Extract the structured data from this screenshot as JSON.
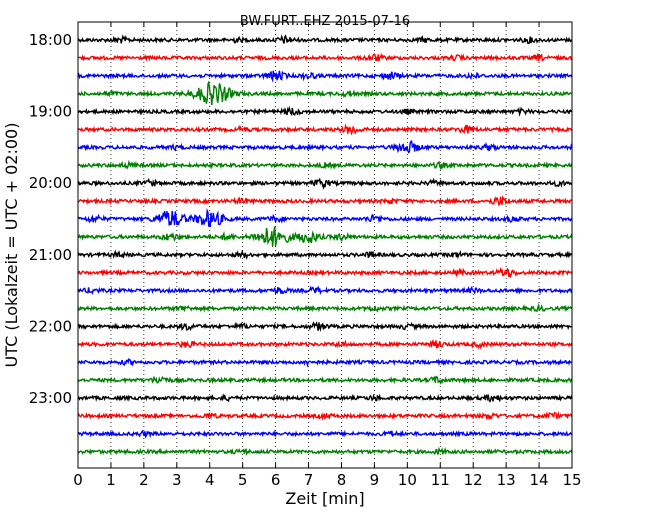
{
  "chart_data": {
    "type": "line",
    "title": "BW.FURT..EHZ 2015-07-16",
    "xlabel": "Zeit  [min]",
    "ylabel": "UTC (Lokalzeit = UTC + 02:00)",
    "xlim": [
      0,
      15
    ],
    "x_ticks": [
      "0",
      "1",
      "2",
      "3",
      "4",
      "5",
      "6",
      "7",
      "8",
      "9",
      "10",
      "11",
      "12",
      "13",
      "14",
      "15"
    ],
    "y_tick_labels": [
      "18:00",
      "19:00",
      "20:00",
      "21:00",
      "22:00",
      "23:00"
    ],
    "grid": "vertical dotted at each minute",
    "trace_colors": [
      "#000000",
      "#ff0000",
      "#0000ff",
      "#008000"
    ],
    "series": [
      {
        "start": "18:00",
        "bursts": [
          [
            1.3,
            0.7
          ],
          [
            4.8,
            0.5
          ],
          [
            6.3,
            0.9
          ],
          [
            10.5,
            0.5
          ],
          [
            13.7,
            0.6
          ]
        ]
      },
      {
        "start": "18:15",
        "bursts": [
          [
            9.0,
            0.9
          ],
          [
            11.5,
            0.5
          ],
          [
            14.0,
            0.6
          ]
        ]
      },
      {
        "start": "18:30",
        "bursts": [
          [
            6.0,
            1.3
          ],
          [
            7.0,
            0.7
          ],
          [
            9.5,
            0.9
          ],
          [
            12.0,
            0.6
          ]
        ]
      },
      {
        "start": "18:45",
        "bursts": [
          [
            4.1,
            3.2
          ],
          [
            1.0,
            0.5
          ],
          [
            8.2,
            0.6
          ]
        ]
      },
      {
        "start": "19:00",
        "bursts": [
          [
            6.5,
            0.9
          ],
          [
            10.0,
            0.5
          ],
          [
            13.5,
            0.5
          ]
        ]
      },
      {
        "start": "19:15",
        "bursts": [
          [
            8.3,
            1.1
          ],
          [
            11.8,
            0.9
          ],
          [
            5.0,
            0.5
          ]
        ]
      },
      {
        "start": "19:30",
        "bursts": [
          [
            10.0,
            1.7
          ],
          [
            12.5,
            0.7
          ],
          [
            3.0,
            0.5
          ]
        ]
      },
      {
        "start": "19:45",
        "bursts": [
          [
            1.5,
            0.6
          ],
          [
            7.5,
            0.5
          ],
          [
            11.0,
            0.6
          ]
        ]
      },
      {
        "start": "20:00",
        "bursts": [
          [
            2.2,
            0.7
          ],
          [
            7.4,
            1.0
          ],
          [
            10.8,
            0.5
          ],
          [
            14.6,
            0.5
          ]
        ]
      },
      {
        "start": "20:15",
        "bursts": [
          [
            5.0,
            0.6
          ],
          [
            12.8,
            1.1
          ],
          [
            9.5,
            0.5
          ]
        ]
      },
      {
        "start": "20:30",
        "bursts": [
          [
            0.5,
            0.8
          ],
          [
            2.8,
            2.4
          ],
          [
            4.0,
            2.3
          ],
          [
            6.0,
            0.7
          ],
          [
            9.0,
            0.9
          ],
          [
            13.2,
            0.6
          ]
        ]
      },
      {
        "start": "20:45",
        "bursts": [
          [
            2.8,
            0.9
          ],
          [
            5.9,
            2.9
          ],
          [
            7.0,
            1.6
          ],
          [
            8.0,
            0.8
          ],
          [
            4.5,
            0.7
          ]
        ]
      },
      {
        "start": "21:00",
        "bursts": [
          [
            1.2,
            0.5
          ],
          [
            5.0,
            0.6
          ],
          [
            8.9,
            0.6
          ],
          [
            11.5,
            0.5
          ]
        ]
      },
      {
        "start": "21:15",
        "bursts": [
          [
            13.0,
            1.1
          ],
          [
            11.6,
            0.5
          ]
        ]
      },
      {
        "start": "21:30",
        "bursts": [
          [
            0.4,
            0.6
          ],
          [
            6.1,
            0.8
          ],
          [
            7.2,
            0.7
          ],
          [
            12.0,
            0.5
          ]
        ]
      },
      {
        "start": "21:45",
        "bursts": [
          [
            3.2,
            0.6
          ],
          [
            9.0,
            0.5
          ],
          [
            14.0,
            0.5
          ]
        ]
      },
      {
        "start": "22:00",
        "bursts": [
          [
            3.3,
            0.8
          ],
          [
            7.3,
            0.9
          ],
          [
            10.0,
            0.6
          ],
          [
            5.0,
            0.5
          ]
        ]
      },
      {
        "start": "22:15",
        "bursts": [
          [
            3.3,
            0.7
          ],
          [
            10.9,
            0.8
          ],
          [
            12.2,
            0.5
          ],
          [
            8.0,
            0.5
          ]
        ]
      },
      {
        "start": "22:30",
        "bursts": [
          [
            1.5,
            0.5
          ],
          [
            7.0,
            0.5
          ]
        ]
      },
      {
        "start": "22:45",
        "bursts": [
          [
            2.5,
            0.9
          ],
          [
            10.9,
            0.8
          ]
        ]
      },
      {
        "start": "23:00",
        "bursts": [
          [
            12.6,
            0.8
          ],
          [
            4.5,
            0.5
          ],
          [
            9.0,
            0.5
          ]
        ]
      },
      {
        "start": "23:15",
        "bursts": [
          [
            4.0,
            0.6
          ],
          [
            12.5,
            0.7
          ],
          [
            14.4,
            0.7
          ],
          [
            7.5,
            0.5
          ]
        ]
      },
      {
        "start": "23:30",
        "bursts": [
          [
            2.0,
            0.5
          ],
          [
            9.5,
            0.5
          ]
        ]
      },
      {
        "start": "23:45",
        "bursts": [
          [
            5.0,
            0.5
          ],
          [
            11.0,
            0.5
          ]
        ]
      }
    ]
  }
}
